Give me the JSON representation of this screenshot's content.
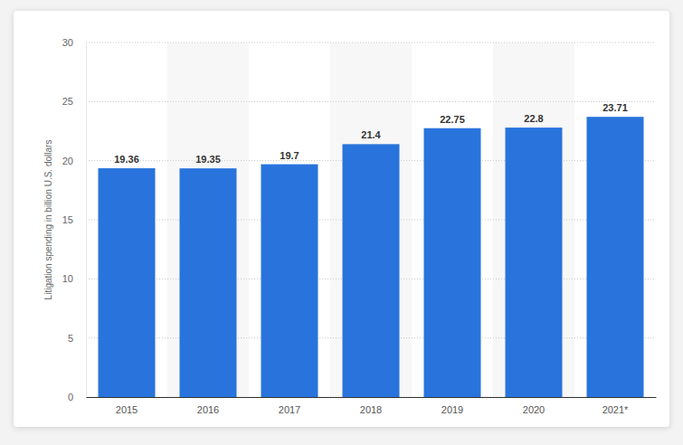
{
  "chart_data": {
    "type": "bar",
    "y_label": "Litigation spending in billion U.S. dollars",
    "categories": [
      "2015",
      "2016",
      "2017",
      "2018",
      "2019",
      "2020",
      "2021*"
    ],
    "values": [
      19.36,
      19.35,
      19.7,
      21.4,
      22.75,
      22.8,
      23.71
    ],
    "color": "#2874dc",
    "ylim": [
      0,
      30
    ],
    "yticks": [
      0,
      5,
      10,
      15,
      20,
      25,
      30
    ],
    "grid": true,
    "data_labels": true
  }
}
